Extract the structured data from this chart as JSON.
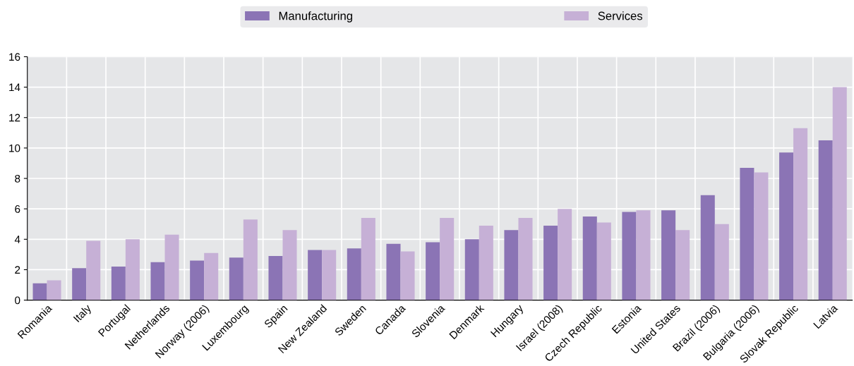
{
  "chart_data": {
    "type": "bar",
    "categories": [
      "Romania",
      "Italy",
      "Portugal",
      "Netherlands",
      "Norway (2006)",
      "Luxembourg",
      "Spain",
      "New Zealand",
      "Sweden",
      "Canada",
      "Slovenia",
      "Denmark",
      "Hungary",
      "Israel (2008)",
      "Czech Republic",
      "Estonia",
      "United States",
      "Brazil (2006)",
      "Bulgaria (2006)",
      "Slovak Republic",
      "Latvia"
    ],
    "series": [
      {
        "name": "Manufacturing",
        "color": "#8b74b5",
        "values": [
          1.1,
          2.1,
          2.2,
          2.5,
          2.6,
          2.8,
          2.9,
          3.3,
          3.4,
          3.7,
          3.8,
          4.0,
          4.6,
          4.9,
          5.5,
          5.8,
          5.9,
          6.9,
          8.7,
          9.7,
          10.5
        ]
      },
      {
        "name": "Services",
        "color": "#c6b0d6",
        "values": [
          1.3,
          3.9,
          4.0,
          4.3,
          3.1,
          5.3,
          4.6,
          3.3,
          5.4,
          3.2,
          5.4,
          4.9,
          5.4,
          6.0,
          5.1,
          5.9,
          4.6,
          5.0,
          8.4,
          11.3,
          14.0
        ]
      }
    ],
    "ylim": [
      0,
      16
    ],
    "yticks": [
      0,
      2,
      4,
      6,
      8,
      10,
      12,
      14,
      16
    ],
    "grid": true,
    "legend": "top"
  }
}
